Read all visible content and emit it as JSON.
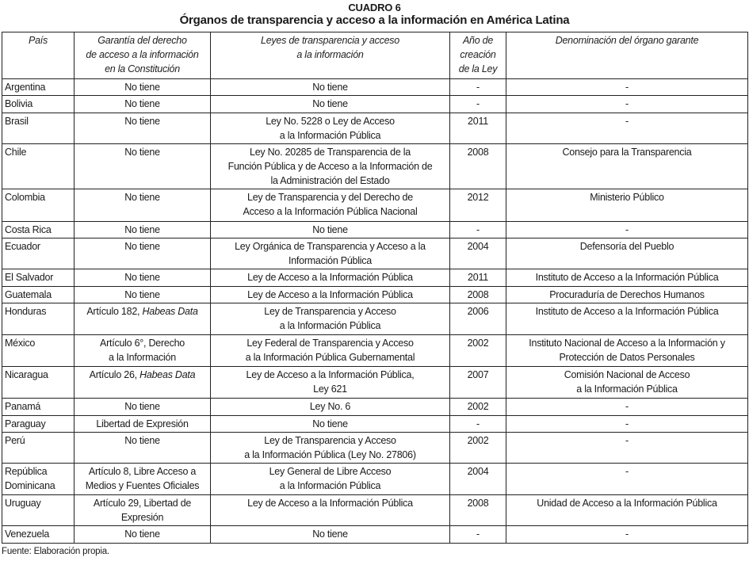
{
  "title": {
    "label": "CUADRO 6",
    "text": "Órganos de transparencia y acceso a la información en América Latina"
  },
  "columns": [
    "País",
    "Garantía del derecho\nde acceso a la información\nen la Constitución",
    "Leyes de transparencia y acceso\na la información",
    "Año de\ncreación\nde la Ley",
    "Denominación del órgano garante"
  ],
  "rows": [
    {
      "pais": "Argentina",
      "garantia": "No tiene",
      "ley": "No tiene",
      "anio": "-",
      "organo": "-"
    },
    {
      "pais": "Bolivia",
      "garantia": "No tiene",
      "ley": "No tiene",
      "anio": "-",
      "organo": "-"
    },
    {
      "pais": "Brasil",
      "garantia": "No tiene",
      "ley": "Ley No. 5228 o Ley de Acceso\na la Información Pública",
      "anio": "2011",
      "organo": "-"
    },
    {
      "pais": "Chile",
      "garantia": "No tiene",
      "ley": "Ley No. 20285 de Transparencia de la\nFunción Pública y de Acceso a la Información de\nla Administración del Estado",
      "anio": "2008",
      "organo": "Consejo para la Transparencia"
    },
    {
      "pais": "Colombia",
      "garantia": "No tiene",
      "ley": "Ley de Transparencia y del Derecho de\nAcceso a la Información Pública Nacional",
      "anio": "2012",
      "organo": "Ministerio Público"
    },
    {
      "pais": "Costa Rica",
      "garantia": "No tiene",
      "ley": "No tiene",
      "anio": "-",
      "organo": "-"
    },
    {
      "pais": "Ecuador",
      "garantia": "No tiene",
      "ley": "Ley Orgánica de Transparencia y Acceso a la\nInformación Pública",
      "anio": "2004",
      "organo": "Defensoría del Pueblo"
    },
    {
      "pais": "El Salvador",
      "garantia": "No tiene",
      "ley": "Ley de Acceso a la Información Pública",
      "anio": "2011",
      "organo": "Instituto de Acceso a la Información Pública"
    },
    {
      "pais": "Guatemala",
      "garantia": "No tiene",
      "ley": "Ley de Acceso a la Información Pública",
      "anio": "2008",
      "organo": "Procuraduría de Derechos Humanos"
    },
    {
      "pais": "Honduras",
      "garantia": "Artículo 182, ",
      "garantia_italic": "Habeas Data",
      "ley": "Ley de Transparencia y Acceso\na la Información Pública",
      "anio": "2006",
      "organo": "Instituto de Acceso a la Información Pública"
    },
    {
      "pais": "México",
      "garantia": "Artículo 6°, Derecho\na la Información",
      "ley": "Ley Federal de Transparencia y Acceso\na la Información Pública Gubernamental",
      "anio": "2002",
      "organo": "Instituto Nacional de Acceso a la Información y\nProtección de Datos Personales"
    },
    {
      "pais": "Nicaragua",
      "garantia": "Artículo 26, ",
      "garantia_italic": "Habeas Data",
      "ley": "Ley de Acceso a la Información Pública,\nLey 621",
      "anio": "2007",
      "organo": "Comisión Nacional de Acceso\na la Información Pública"
    },
    {
      "pais": "Panamá",
      "garantia": "No tiene",
      "ley": "Ley No. 6",
      "anio": "2002",
      "organo": "-"
    },
    {
      "pais": "Paraguay",
      "garantia": "Libertad de Expresión",
      "ley": "No tiene",
      "anio": "-",
      "organo": "-"
    },
    {
      "pais": "Perú",
      "garantia": "No tiene",
      "ley": "Ley de Transparencia y Acceso\na la Información Pública (Ley No. 27806)",
      "anio": "2002",
      "organo": "-"
    },
    {
      "pais": "República\nDominicana",
      "garantia": "Artículo 8, Libre Acceso a\nMedios y Fuentes Oficiales",
      "ley": "Ley General de Libre Acceso\na la Información Pública",
      "anio": "2004",
      "organo": "-"
    },
    {
      "pais": "Uruguay",
      "garantia": "Artículo 29, Libertad de\nExpresión",
      "ley": "Ley de Acceso a la Información Pública",
      "anio": "2008",
      "organo": "Unidad de Acceso a la Información Pública"
    },
    {
      "pais": "Venezuela",
      "garantia": "No tiene",
      "ley": "No tiene",
      "anio": "-",
      "organo": "-"
    }
  ],
  "footer": "Fuente: Elaboración propia."
}
